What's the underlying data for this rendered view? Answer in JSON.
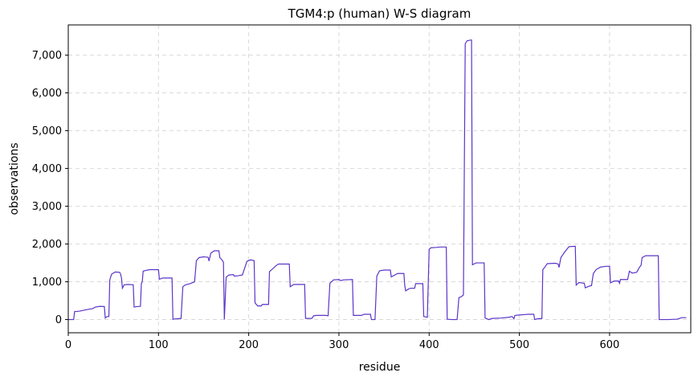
{
  "chart_data": {
    "type": "line",
    "title": "TGM4:p (human) W-S diagram",
    "xlabel": "residue",
    "ylabel": "observations",
    "xlim": [
      0,
      690
    ],
    "ylim": [
      -350,
      7800
    ],
    "xticks": [
      0,
      100,
      200,
      300,
      400,
      500,
      600
    ],
    "xtick_labels": [
      "0",
      "100",
      "200",
      "300",
      "400",
      "500",
      "600"
    ],
    "yticks": [
      0,
      1000,
      2000,
      3000,
      4000,
      5000,
      6000,
      7000
    ],
    "ytick_labels": [
      "0",
      "1,000",
      "2,000",
      "3,000",
      "4,000",
      "5,000",
      "6,000",
      "7,000"
    ],
    "grid": true,
    "line_color": "#5b35c8",
    "series": [
      {
        "points": [
          [
            0,
            0
          ],
          [
            6,
            0
          ],
          [
            7,
            210
          ],
          [
            12,
            220
          ],
          [
            20,
            260
          ],
          [
            27,
            290
          ],
          [
            30,
            330
          ],
          [
            35,
            350
          ],
          [
            40,
            345
          ],
          [
            41,
            40
          ],
          [
            43,
            80
          ],
          [
            45,
            80
          ],
          [
            46,
            1050
          ],
          [
            48,
            1200
          ],
          [
            52,
            1260
          ],
          [
            57,
            1250
          ],
          [
            58,
            1200
          ],
          [
            59,
            1100
          ],
          [
            60,
            830
          ],
          [
            62,
            920
          ],
          [
            66,
            930
          ],
          [
            72,
            920
          ],
          [
            73,
            330
          ],
          [
            75,
            340
          ],
          [
            80,
            350
          ],
          [
            81,
            950
          ],
          [
            82,
            1000
          ],
          [
            83,
            1280
          ],
          [
            86,
            1300
          ],
          [
            90,
            1320
          ],
          [
            100,
            1320
          ],
          [
            101,
            1070
          ],
          [
            105,
            1100
          ],
          [
            115,
            1100
          ],
          [
            116,
            10
          ],
          [
            120,
            20
          ],
          [
            125,
            30
          ],
          [
            127,
            870
          ],
          [
            130,
            920
          ],
          [
            135,
            950
          ],
          [
            140,
            1000
          ],
          [
            142,
            1560
          ],
          [
            145,
            1640
          ],
          [
            150,
            1660
          ],
          [
            155,
            1650
          ],
          [
            156,
            1550
          ],
          [
            158,
            1760
          ],
          [
            162,
            1820
          ],
          [
            167,
            1820
          ],
          [
            168,
            1640
          ],
          [
            170,
            1590
          ],
          [
            172,
            1520
          ],
          [
            173,
            0
          ],
          [
            175,
            1120
          ],
          [
            178,
            1180
          ],
          [
            183,
            1190
          ],
          [
            184,
            1150
          ],
          [
            188,
            1160
          ],
          [
            193,
            1180
          ],
          [
            198,
            1540
          ],
          [
            202,
            1580
          ],
          [
            206,
            1560
          ],
          [
            207,
            440
          ],
          [
            210,
            360
          ],
          [
            214,
            360
          ],
          [
            215,
            400
          ],
          [
            222,
            400
          ],
          [
            223,
            1270
          ],
          [
            226,
            1330
          ],
          [
            230,
            1420
          ],
          [
            233,
            1470
          ],
          [
            245,
            1470
          ],
          [
            246,
            870
          ],
          [
            250,
            930
          ],
          [
            262,
            930
          ],
          [
            263,
            30
          ],
          [
            270,
            30
          ],
          [
            272,
            100
          ],
          [
            275,
            110
          ],
          [
            285,
            110
          ],
          [
            288,
            100
          ],
          [
            290,
            960
          ],
          [
            294,
            1050
          ],
          [
            300,
            1060
          ],
          [
            302,
            1030
          ],
          [
            305,
            1050
          ],
          [
            315,
            1060
          ],
          [
            316,
            110
          ],
          [
            325,
            110
          ],
          [
            328,
            140
          ],
          [
            335,
            140
          ],
          [
            336,
            0
          ],
          [
            340,
            0
          ],
          [
            342,
            1150
          ],
          [
            345,
            1290
          ],
          [
            350,
            1310
          ],
          [
            357,
            1310
          ],
          [
            358,
            1130
          ],
          [
            362,
            1180
          ],
          [
            365,
            1220
          ],
          [
            372,
            1220
          ],
          [
            373,
            900
          ],
          [
            374,
            760
          ],
          [
            378,
            820
          ],
          [
            380,
            830
          ],
          [
            384,
            830
          ],
          [
            385,
            950
          ],
          [
            393,
            950
          ],
          [
            394,
            80
          ],
          [
            398,
            60
          ],
          [
            400,
            1860
          ],
          [
            402,
            1900
          ],
          [
            408,
            1910
          ],
          [
            412,
            1920
          ],
          [
            419,
            1920
          ],
          [
            420,
            10
          ],
          [
            425,
            0
          ],
          [
            431,
            0
          ],
          [
            433,
            580
          ],
          [
            436,
            610
          ],
          [
            438,
            650
          ],
          [
            440,
            7300
          ],
          [
            442,
            7380
          ],
          [
            446,
            7400
          ],
          [
            447,
            7400
          ],
          [
            448,
            1450
          ],
          [
            452,
            1500
          ],
          [
            461,
            1500
          ],
          [
            462,
            40
          ],
          [
            466,
            0
          ],
          [
            470,
            30
          ],
          [
            480,
            40
          ],
          [
            488,
            60
          ],
          [
            492,
            80
          ],
          [
            494,
            20
          ],
          [
            495,
            110
          ],
          [
            500,
            120
          ],
          [
            505,
            130
          ],
          [
            510,
            140
          ],
          [
            516,
            140
          ],
          [
            517,
            0
          ],
          [
            520,
            20
          ],
          [
            525,
            30
          ],
          [
            526,
            1320
          ],
          [
            528,
            1380
          ],
          [
            531,
            1480
          ],
          [
            540,
            1490
          ],
          [
            543,
            1470
          ],
          [
            544,
            1380
          ],
          [
            546,
            1640
          ],
          [
            550,
            1780
          ],
          [
            555,
            1930
          ],
          [
            562,
            1940
          ],
          [
            563,
            910
          ],
          [
            566,
            980
          ],
          [
            572,
            960
          ],
          [
            573,
            840
          ],
          [
            577,
            880
          ],
          [
            580,
            900
          ],
          [
            582,
            1220
          ],
          [
            585,
            1320
          ],
          [
            590,
            1390
          ],
          [
            596,
            1410
          ],
          [
            600,
            1410
          ],
          [
            601,
            970
          ],
          [
            605,
            1020
          ],
          [
            610,
            1020
          ],
          [
            611,
            960
          ],
          [
            612,
            1060
          ],
          [
            620,
            1060
          ],
          [
            622,
            1280
          ],
          [
            625,
            1230
          ],
          [
            630,
            1250
          ],
          [
            633,
            1380
          ],
          [
            635,
            1440
          ],
          [
            636,
            1640
          ],
          [
            640,
            1690
          ],
          [
            654,
            1690
          ],
          [
            655,
            0
          ],
          [
            665,
            0
          ],
          [
            675,
            10
          ],
          [
            680,
            50
          ],
          [
            685,
            50
          ]
        ]
      }
    ]
  }
}
